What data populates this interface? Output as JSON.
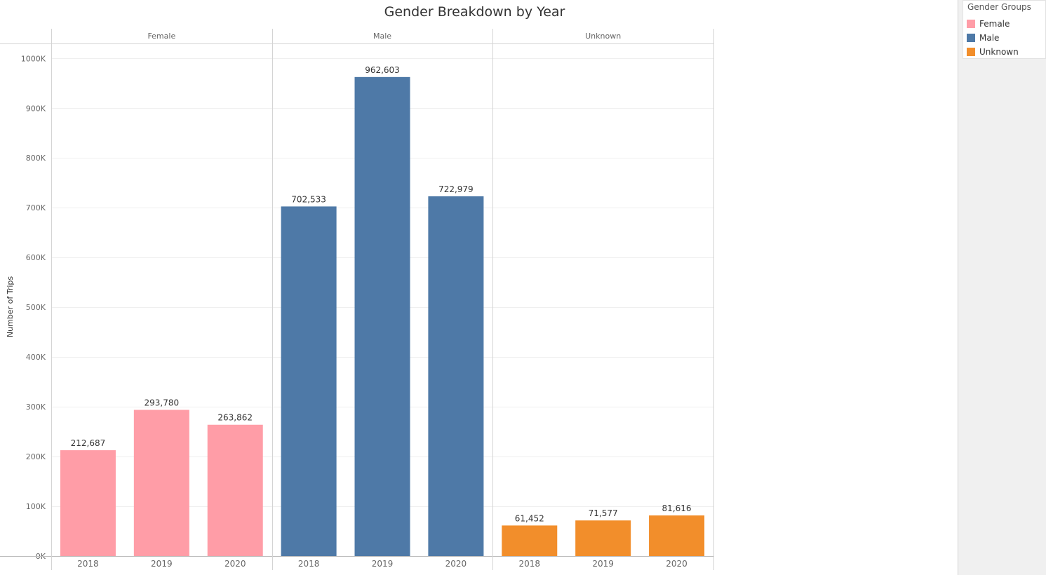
{
  "chart_data": {
    "type": "bar",
    "title": "Gender Breakdown by Year",
    "xlabel": "",
    "ylabel": "Number of Trips",
    "ylim": [
      0,
      1030000
    ],
    "yticks": [
      {
        "value": 0,
        "label": "0K"
      },
      {
        "value": 100000,
        "label": "100K"
      },
      {
        "value": 200000,
        "label": "200K"
      },
      {
        "value": 300000,
        "label": "300K"
      },
      {
        "value": 400000,
        "label": "400K"
      },
      {
        "value": 500000,
        "label": "500K"
      },
      {
        "value": 600000,
        "label": "600K"
      },
      {
        "value": 700000,
        "label": "700K"
      },
      {
        "value": 800000,
        "label": "800K"
      },
      {
        "value": 900000,
        "label": "900K"
      },
      {
        "value": 1000000,
        "label": "1000K"
      }
    ],
    "grid": true,
    "legend_position": "top-right",
    "categories": [
      "2018",
      "2019",
      "2020"
    ],
    "panels": [
      {
        "name": "Female",
        "color": "#ff9da7",
        "values": [
          212687,
          293780,
          263862
        ],
        "labels": [
          "212,687",
          "293,780",
          "263,862"
        ]
      },
      {
        "name": "Male",
        "color": "#4e79a7",
        "values": [
          702533,
          962603,
          722979
        ],
        "labels": [
          "702,533",
          "962,603",
          "722,979"
        ]
      },
      {
        "name": "Unknown",
        "color": "#f28e2b",
        "values": [
          61452,
          71577,
          81616
        ],
        "labels": [
          "61,452",
          "71,577",
          "81,616"
        ]
      }
    ]
  },
  "legend": {
    "title": "Gender Groups",
    "items": [
      {
        "label": "Female",
        "color": "#ff9da7"
      },
      {
        "label": "Male",
        "color": "#4e79a7"
      },
      {
        "label": "Unknown",
        "color": "#f28e2b"
      }
    ]
  }
}
